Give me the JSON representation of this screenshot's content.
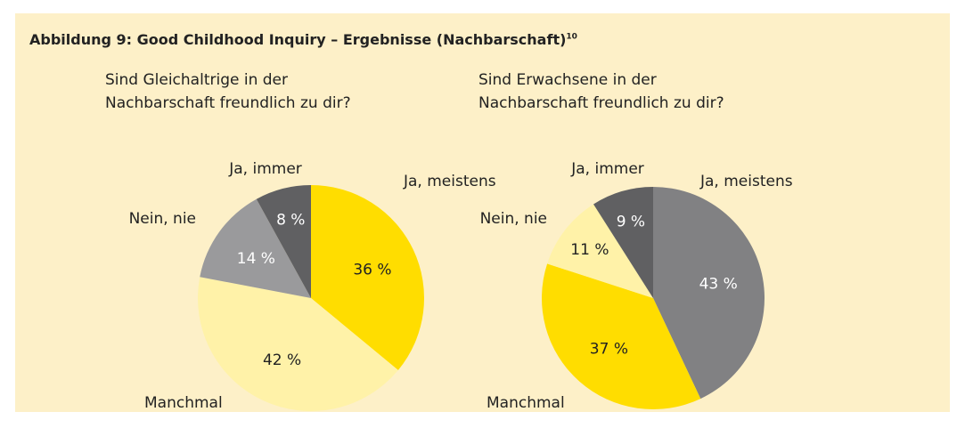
{
  "title": "Abbildung 9: Good Childhood Inquiry – Ergebnisse (Nachbarschaft)",
  "footnote_mark": "10",
  "chart_data": [
    {
      "type": "pie",
      "title": "Sind Gleichaltrige in der Nachbarschaft freundlich zu dir?",
      "categories": [
        "Ja, meistens",
        "Manchmal",
        "Nein, nie",
        "Ja, immer"
      ],
      "values": [
        36,
        42,
        14,
        8
      ],
      "value_labels": [
        "36 %",
        "42 %",
        "14 %",
        "8 %"
      ],
      "colors": [
        "#ffdd00",
        "#fff2a8",
        "#9a9a9c",
        "#606062"
      ]
    },
    {
      "type": "pie",
      "title": "Sind Erwachsene in der Nachbarschaft freundlich zu dir?",
      "categories": [
        "Ja, meistens",
        "Manchmal",
        "Nein, nie",
        "Ja, immer"
      ],
      "values": [
        43,
        37,
        11,
        9
      ],
      "value_labels": [
        "43 %",
        "37 %",
        "11 %",
        "9 %"
      ],
      "colors": [
        "#818183",
        "#ffdd00",
        "#fff2a8",
        "#606062"
      ]
    }
  ]
}
